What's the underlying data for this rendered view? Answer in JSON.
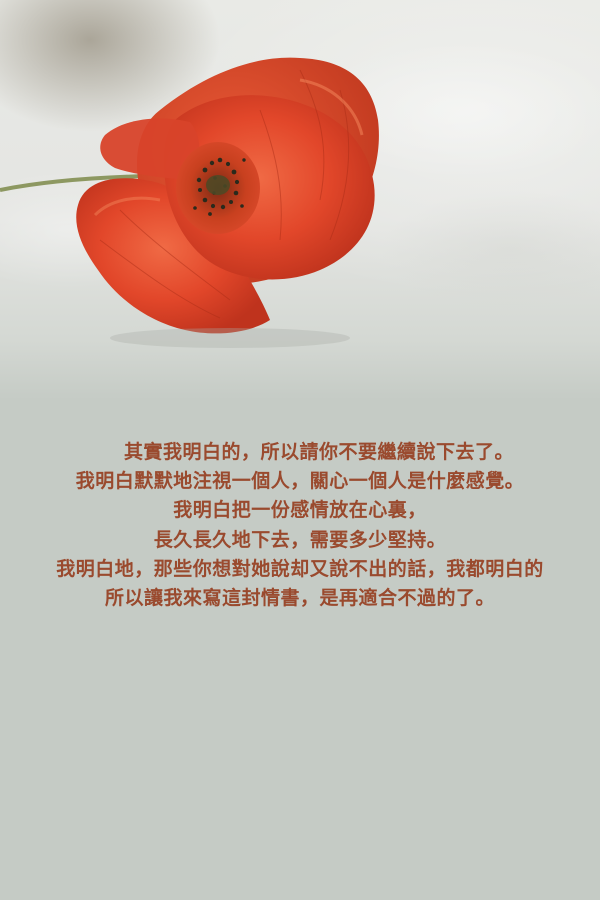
{
  "image": {
    "subject": "red-poppy-flower",
    "colors": {
      "background": "#c5cbc5",
      "petal": "#e2472a",
      "petal_dark": "#b8311c",
      "stamen": "#2a2a1c",
      "text": "#9a4a2e"
    }
  },
  "poem": {
    "lines": [
      "其實我明白的，所以請你不要繼續說下去了。",
      "我明白默默地注視一個人，關心一個人是什麼感覺。",
      "我明白把一份感情放在心裏，",
      "長久長久地下去，需要多少堅持。",
      "我明白地，那些你想對她說却又說不出的話，我都明白的",
      "所以讓我來寫這封情書，是再適合不過的了。"
    ]
  }
}
